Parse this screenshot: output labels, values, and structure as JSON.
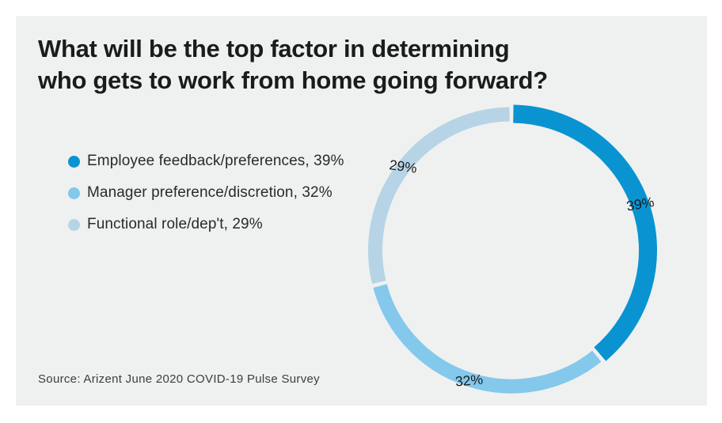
{
  "title": {
    "lines": [
      "What will be the top factor in determining",
      "who gets to work from home going forward?"
    ]
  },
  "legend": {
    "items": [
      {
        "label": "Employee feedback/preferences, 39%",
        "color": "#0994d1"
      },
      {
        "label": "Manager preference/discretion, 32%",
        "color": "#84c8ec"
      },
      {
        "label": "Functional role/dep't, 29%",
        "color": "#b6d4e6"
      }
    ]
  },
  "source": {
    "text": "Source: Arizent June 2020 COVID-19 Pulse Survey"
  },
  "colors": {
    "panel_background": "#eff1f0",
    "page_background": "#ffffff",
    "segment_dark_blue": "#0994d1",
    "segment_sky_blue": "#84c8ec",
    "segment_pale_blue": "#b6d4e6"
  },
  "chart_data": {
    "type": "pie",
    "subtype": "donut",
    "title": "What will be the top factor in determining who gets to work from home going forward?",
    "segments": [
      {
        "label": "Employee feedback/preferences",
        "value": 39,
        "display": "39%",
        "color": "#0994d1"
      },
      {
        "label": "Manager preference/discretion",
        "value": 32,
        "display": "32%",
        "color": "#84c8ec"
      },
      {
        "label": "Functional role/dep't",
        "value": 29,
        "display": "29%",
        "color": "#b6d4e6"
      }
    ],
    "start_angle_deg": 0,
    "direction": "clockwise",
    "legend_position": "left",
    "labels_on_ring": true,
    "source": "Source: Arizent June 2020 COVID-19 Pulse Survey"
  }
}
